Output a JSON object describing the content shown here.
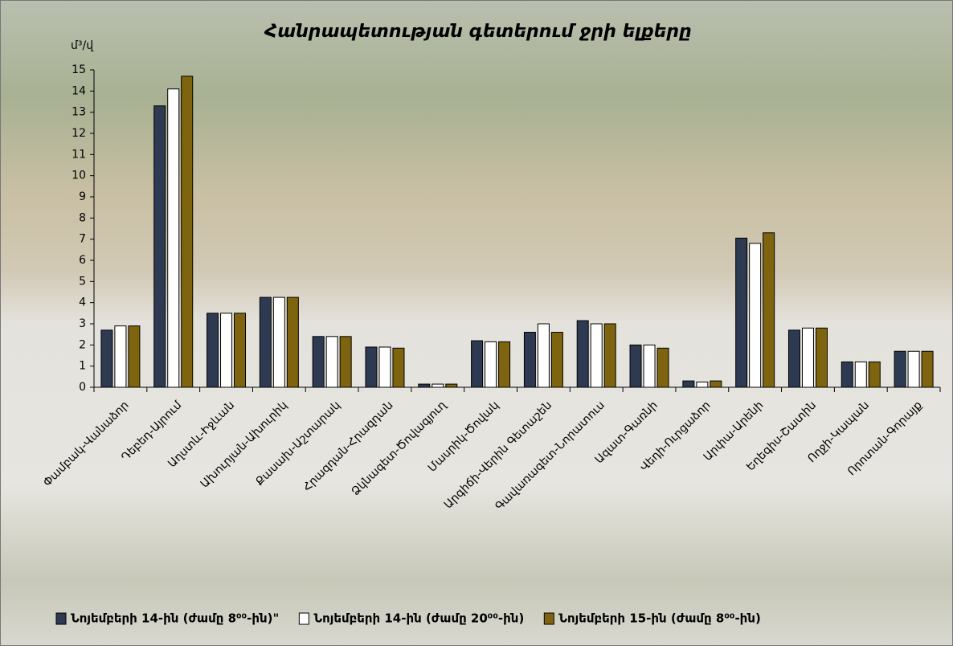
{
  "chart_data": {
    "type": "bar",
    "title": "Հանրապետության գետերում ջրի ելքերը",
    "y_label": "մ³/վ",
    "categories": [
      "Փամբակ-Վանաձոր",
      "Դեբեդ-Այրում",
      "Աղստև-Իջևան",
      "Ախուրյան-Ախուրիկ",
      "Քասախ-Աշտարակ",
      "Հրազդան-Հրազդան",
      "Ձկնագետ-Ծովագյուղ",
      "Մասրիկ-Ծովակ",
      "Արգիճի-Վերին Գետաշեն",
      "Գավառագետ-Նորատուս",
      "Ազատ-Գառնի",
      "Վեդի-Ուրցաձոր",
      "Արփա-Արենի",
      "Եղեգիս-Շատին",
      "Ողջի-Կապան",
      "Որոտան-Գորայք"
    ],
    "series": [
      {
        "name": "Նոյեմբերի 14-ին (ժամը 8⁰⁰-ին)\"",
        "color": "#2e3a52",
        "values": [
          2.7,
          13.3,
          3.5,
          4.25,
          2.4,
          1.9,
          0.15,
          2.2,
          2.6,
          3.15,
          2.0,
          0.3,
          7.05,
          2.7,
          1.2,
          1.7
        ]
      },
      {
        "name": "Նոյեմբերի 14-ին (ժամը 20⁰⁰-ին)",
        "color": "#ffffff",
        "values": [
          2.9,
          14.1,
          3.5,
          4.25,
          2.4,
          1.9,
          0.15,
          2.15,
          3.0,
          3.0,
          2.0,
          0.25,
          6.8,
          2.8,
          1.2,
          1.7
        ]
      },
      {
        "name": "Նոյեմբերի 15-ին (ժամը 8⁰⁰-ին)",
        "color": "#7f6410",
        "values": [
          2.9,
          14.7,
          3.5,
          4.25,
          2.4,
          1.85,
          0.15,
          2.15,
          2.6,
          3.0,
          1.85,
          0.3,
          7.3,
          2.8,
          1.2,
          1.7
        ]
      }
    ],
    "ylim": [
      0,
      15
    ],
    "yticks": [
      0,
      1,
      2,
      3,
      4,
      5,
      6,
      7,
      8,
      9,
      10,
      11,
      12,
      13,
      14,
      15
    ],
    "legend": "bottom"
  }
}
